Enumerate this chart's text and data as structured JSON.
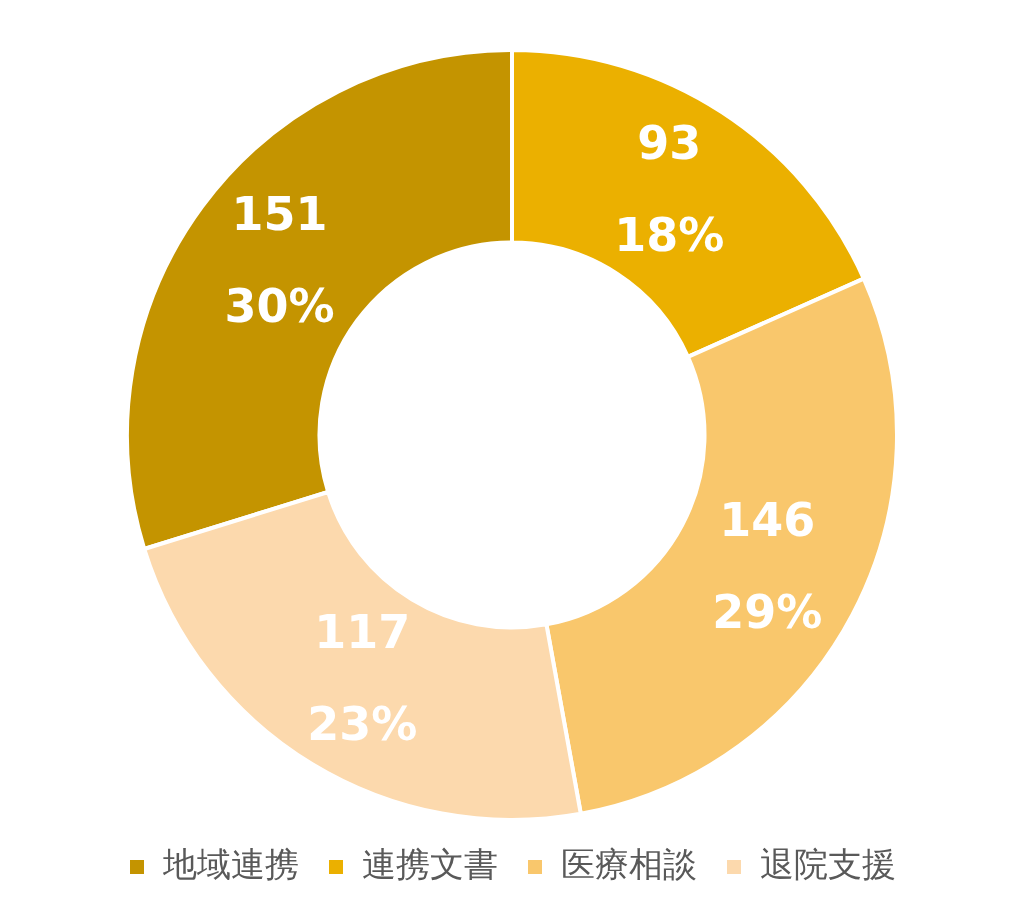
{
  "chart_data": {
    "type": "donut",
    "categories": [
      "地域連携",
      "連携文書",
      "医療相談",
      "退院支援"
    ],
    "values": [
      151,
      93,
      146,
      117
    ],
    "colors": [
      "#c49400",
      "#ebb000",
      "#f9c76c",
      "#fcd9ad"
    ],
    "value_labels": [
      "151\n30%",
      "93\n18%",
      "146\n29%",
      "117\n23%"
    ],
    "legend": "bottom"
  }
}
